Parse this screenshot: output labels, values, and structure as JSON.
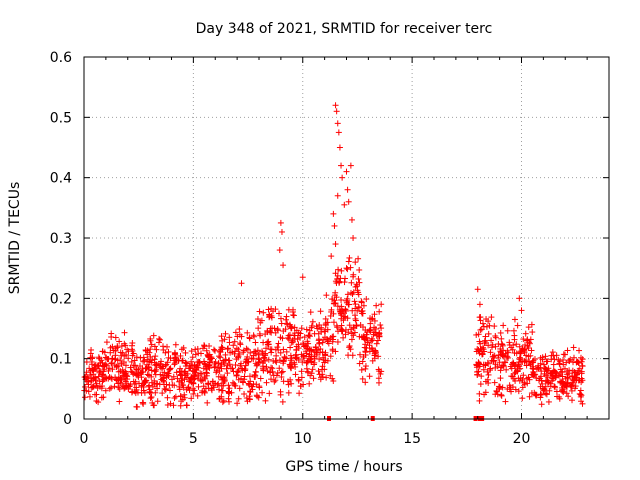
{
  "chart_data": {
    "type": "scatter",
    "title": "Day 348 of 2021, SRMTID for receiver terc",
    "xlabel": "GPS time / hours",
    "ylabel": "SRMTID / TECUs",
    "xlim": [
      0,
      24
    ],
    "ylim": [
      0,
      0.6
    ],
    "xticks": [
      0,
      5,
      10,
      15,
      20
    ],
    "xtick_labels": [
      "0",
      "5",
      "10",
      "15",
      "20"
    ],
    "yticks": [
      0,
      0.1,
      0.2,
      0.3,
      0.4,
      0.5,
      0.6
    ],
    "ytick_labels": [
      "0",
      "0.1",
      "0.2",
      "0.3",
      "0.4",
      "0.5",
      "0.6"
    ],
    "grid": true,
    "marker": "+",
    "color": "#ff0000",
    "series": [
      {
        "name": "SRMTID",
        "envelope": [
          {
            "x_range": [
              0.0,
              1.0
            ],
            "base": 0.07,
            "spread": 0.05
          },
          {
            "x_range": [
              1.0,
              2.0
            ],
            "base": 0.08,
            "spread": 0.07
          },
          {
            "x_range": [
              2.0,
              3.0
            ],
            "base": 0.07,
            "spread": 0.06
          },
          {
            "x_range": [
              3.0,
              4.0
            ],
            "base": 0.08,
            "spread": 0.07
          },
          {
            "x_range": [
              4.0,
              5.0
            ],
            "base": 0.07,
            "spread": 0.06
          },
          {
            "x_range": [
              5.0,
              6.0
            ],
            "base": 0.08,
            "spread": 0.06
          },
          {
            "x_range": [
              6.0,
              7.0
            ],
            "base": 0.08,
            "spread": 0.07
          },
          {
            "x_range": [
              7.0,
              8.0
            ],
            "base": 0.09,
            "spread": 0.08
          },
          {
            "x_range": [
              8.0,
              9.0
            ],
            "base": 0.11,
            "spread": 0.09
          },
          {
            "x_range": [
              9.0,
              10.0
            ],
            "base": 0.11,
            "spread": 0.09
          },
          {
            "x_range": [
              10.0,
              11.0
            ],
            "base": 0.11,
            "spread": 0.08
          },
          {
            "x_range": [
              11.0,
              11.4
            ],
            "base": 0.14,
            "spread": 0.1
          },
          {
            "x_range": [
              11.4,
              12.6
            ],
            "base": 0.18,
            "spread": 0.1
          },
          {
            "x_range": [
              12.6,
              13.6
            ],
            "base": 0.13,
            "spread": 0.08
          },
          {
            "x_range": [
              17.9,
              19.0
            ],
            "base": 0.1,
            "spread": 0.08
          },
          {
            "x_range": [
              19.0,
              20.5
            ],
            "base": 0.09,
            "spread": 0.07
          },
          {
            "x_range": [
              20.5,
              22.8
            ],
            "base": 0.07,
            "spread": 0.05
          }
        ],
        "spikes": [
          {
            "x": 9.0,
            "y": 0.325
          },
          {
            "x": 9.05,
            "y": 0.31
          },
          {
            "x": 8.95,
            "y": 0.28
          },
          {
            "x": 9.1,
            "y": 0.255
          },
          {
            "x": 7.2,
            "y": 0.225
          },
          {
            "x": 10.0,
            "y": 0.235
          },
          {
            "x": 11.5,
            "y": 0.52
          },
          {
            "x": 11.55,
            "y": 0.51
          },
          {
            "x": 11.6,
            "y": 0.49
          },
          {
            "x": 11.65,
            "y": 0.475
          },
          {
            "x": 11.7,
            "y": 0.45
          },
          {
            "x": 11.75,
            "y": 0.42
          },
          {
            "x": 11.8,
            "y": 0.4
          },
          {
            "x": 11.6,
            "y": 0.37
          },
          {
            "x": 11.9,
            "y": 0.355
          },
          {
            "x": 12.0,
            "y": 0.41
          },
          {
            "x": 12.05,
            "y": 0.38
          },
          {
            "x": 12.1,
            "y": 0.36
          },
          {
            "x": 12.2,
            "y": 0.42
          },
          {
            "x": 12.25,
            "y": 0.33
          },
          {
            "x": 12.3,
            "y": 0.3
          },
          {
            "x": 11.4,
            "y": 0.34
          },
          {
            "x": 11.45,
            "y": 0.32
          },
          {
            "x": 11.5,
            "y": 0.29
          },
          {
            "x": 11.3,
            "y": 0.27
          },
          {
            "x": 12.4,
            "y": 0.26
          },
          {
            "x": 12.0,
            "y": 0.25
          },
          {
            "x": 18.0,
            "y": 0.215
          },
          {
            "x": 18.1,
            "y": 0.19
          },
          {
            "x": 19.9,
            "y": 0.2
          },
          {
            "x": 20.0,
            "y": 0.18
          },
          {
            "x": 19.7,
            "y": 0.165
          }
        ],
        "gap_markers_x": [
          11.2,
          13.2,
          17.9,
          18.1,
          18.2
        ]
      }
    ]
  }
}
